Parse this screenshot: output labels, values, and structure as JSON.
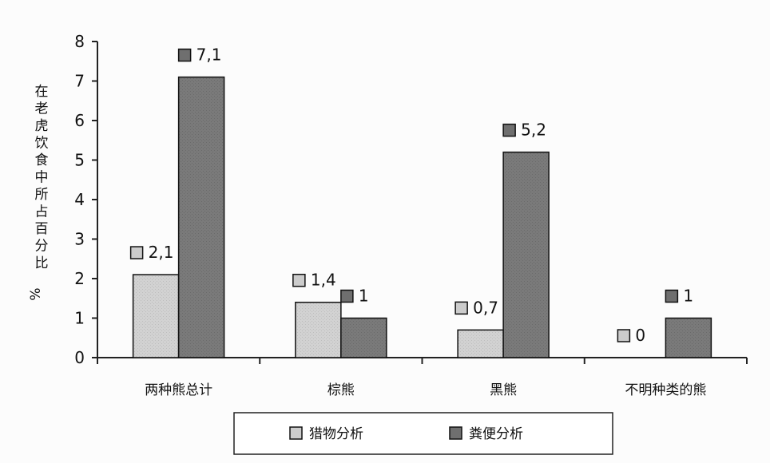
{
  "chart_data": {
    "type": "bar",
    "categories": [
      "两种熊总计",
      "棕熊",
      "黑熊",
      "不明种类的熊"
    ],
    "series": [
      {
        "name": "猎物分析",
        "values": [
          2.1,
          1.4,
          0.7,
          0
        ],
        "labels": [
          "2,1",
          "1,4",
          "0,7",
          "0"
        ],
        "color": "#cfcfcf"
      },
      {
        "name": "粪便分析",
        "values": [
          7.1,
          1,
          5.2,
          1
        ],
        "labels": [
          "7,1",
          "1",
          "5,2",
          "1"
        ],
        "color": "#777777"
      }
    ],
    "title": "",
    "xlabel": "",
    "ylabel": "在老虎饮食中所占百分比 %",
    "ylim": [
      0,
      8
    ],
    "yticks": [
      "0",
      "1",
      "2",
      "3",
      "4",
      "5",
      "6",
      "7",
      "8"
    ],
    "grid": false,
    "legend": "bottom"
  }
}
